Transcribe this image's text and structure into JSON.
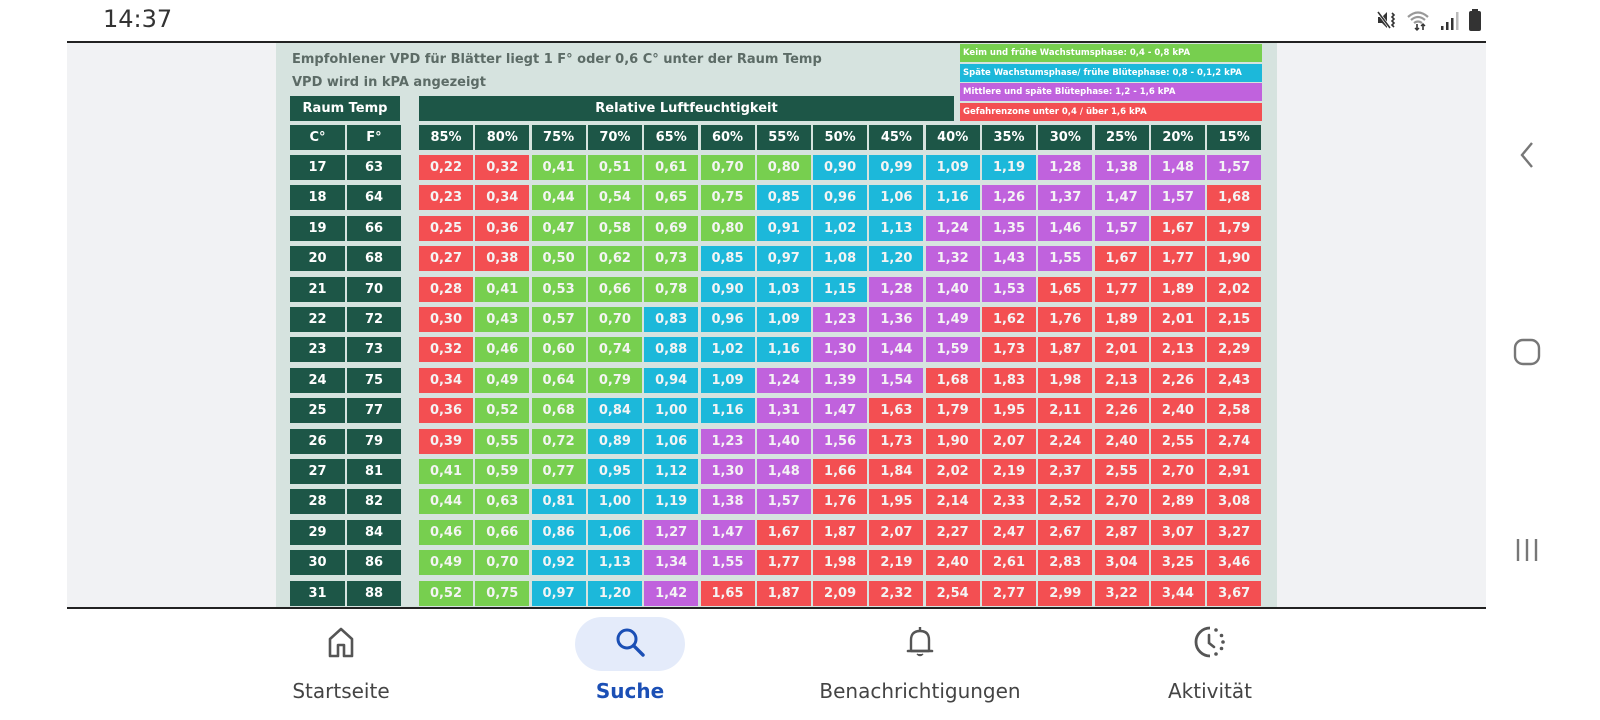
{
  "status_bar": {
    "time": "14:37",
    "icons": [
      "mute-vibrate-icon",
      "wifi-icon",
      "signal-icon",
      "battery-icon"
    ]
  },
  "chart_data": {
    "type": "table",
    "title": "Empfohlener VPD für Blätter liegt 1 F° oder 0,6 C° unter der Raum Temp",
    "subtitle": "VPD wird in kPA angezeigt",
    "row_group_header": "Raum Temp",
    "col_group_header": "Relative Luftfeuchtigkeit",
    "row_headers": [
      "C°",
      "F°"
    ],
    "columns": [
      "85%",
      "80%",
      "75%",
      "70%",
      "65%",
      "60%",
      "55%",
      "50%",
      "45%",
      "40%",
      "35%",
      "30%",
      "25%",
      "20%",
      "15%"
    ],
    "rows": [
      {
        "c": "17",
        "f": "63",
        "values": [
          "0,22",
          "0,32",
          "0,41",
          "0,51",
          "0,61",
          "0,70",
          "0,80",
          "0,90",
          "0,99",
          "1,09",
          "1,19",
          "1,28",
          "1,38",
          "1,48",
          "1,57"
        ]
      },
      {
        "c": "18",
        "f": "64",
        "values": [
          "0,23",
          "0,34",
          "0,44",
          "0,54",
          "0,65",
          "0,75",
          "0,85",
          "0,96",
          "1,06",
          "1,16",
          "1,26",
          "1,37",
          "1,47",
          "1,57",
          "1,68"
        ]
      },
      {
        "c": "19",
        "f": "66",
        "values": [
          "0,25",
          "0,36",
          "0,47",
          "0,58",
          "0,69",
          "0,80",
          "0,91",
          "1,02",
          "1,13",
          "1,24",
          "1,35",
          "1,46",
          "1,57",
          "1,67",
          "1,79"
        ]
      },
      {
        "c": "20",
        "f": "68",
        "values": [
          "0,27",
          "0,38",
          "0,50",
          "0,62",
          "0,73",
          "0,85",
          "0,97",
          "1,08",
          "1,20",
          "1,32",
          "1,43",
          "1,55",
          "1,67",
          "1,77",
          "1,90"
        ]
      },
      {
        "c": "21",
        "f": "70",
        "values": [
          "0,28",
          "0,41",
          "0,53",
          "0,66",
          "0,78",
          "0,90",
          "1,03",
          "1,15",
          "1,28",
          "1,40",
          "1,53",
          "1,65",
          "1,77",
          "1,89",
          "2,02"
        ]
      },
      {
        "c": "22",
        "f": "72",
        "values": [
          "0,30",
          "0,43",
          "0,57",
          "0,70",
          "0,83",
          "0,96",
          "1,09",
          "1,23",
          "1,36",
          "1,49",
          "1,62",
          "1,76",
          "1,89",
          "2,01",
          "2,15"
        ]
      },
      {
        "c": "23",
        "f": "73",
        "values": [
          "0,32",
          "0,46",
          "0,60",
          "0,74",
          "0,88",
          "1,02",
          "1,16",
          "1,30",
          "1,44",
          "1,59",
          "1,73",
          "1,87",
          "2,01",
          "2,13",
          "2,29"
        ]
      },
      {
        "c": "24",
        "f": "75",
        "values": [
          "0,34",
          "0,49",
          "0,64",
          "0,79",
          "0,94",
          "1,09",
          "1,24",
          "1,39",
          "1,54",
          "1,68",
          "1,83",
          "1,98",
          "2,13",
          "2,26",
          "2,43"
        ]
      },
      {
        "c": "25",
        "f": "77",
        "values": [
          "0,36",
          "0,52",
          "0,68",
          "0,84",
          "1,00",
          "1,16",
          "1,31",
          "1,47",
          "1,63",
          "1,79",
          "1,95",
          "2,11",
          "2,26",
          "2,40",
          "2,58"
        ]
      },
      {
        "c": "26",
        "f": "79",
        "values": [
          "0,39",
          "0,55",
          "0,72",
          "0,89",
          "1,06",
          "1,23",
          "1,40",
          "1,56",
          "1,73",
          "1,90",
          "2,07",
          "2,24",
          "2,40",
          "2,55",
          "2,74"
        ]
      },
      {
        "c": "27",
        "f": "81",
        "values": [
          "0,41",
          "0,59",
          "0,77",
          "0,95",
          "1,12",
          "1,30",
          "1,48",
          "1,66",
          "1,84",
          "2,02",
          "2,19",
          "2,37",
          "2,55",
          "2,70",
          "2,91"
        ]
      },
      {
        "c": "28",
        "f": "82",
        "values": [
          "0,44",
          "0,63",
          "0,81",
          "1,00",
          "1,19",
          "1,38",
          "1,57",
          "1,76",
          "1,95",
          "2,14",
          "2,33",
          "2,52",
          "2,70",
          "2,89",
          "3,08"
        ]
      },
      {
        "c": "29",
        "f": "84",
        "values": [
          "0,46",
          "0,66",
          "0,86",
          "1,06",
          "1,27",
          "1,47",
          "1,67",
          "1,87",
          "2,07",
          "2,27",
          "2,47",
          "2,67",
          "2,87",
          "3,07",
          "3,27"
        ]
      },
      {
        "c": "30",
        "f": "86",
        "values": [
          "0,49",
          "0,70",
          "0,92",
          "1,13",
          "1,34",
          "1,55",
          "1,77",
          "1,98",
          "2,19",
          "2,40",
          "2,61",
          "2,83",
          "3,04",
          "3,25",
          "3,46"
        ]
      },
      {
        "c": "31",
        "f": "88",
        "values": [
          "0,52",
          "0,75",
          "0,97",
          "1,20",
          "1,42",
          "1,65",
          "1,87",
          "2,09",
          "2,32",
          "2,54",
          "2,77",
          "2,99",
          "3,22",
          "3,44",
          "3,67"
        ]
      }
    ],
    "legend": [
      {
        "label": "Keim und frühe Wachstumsphase: 0,4 - 0,8 kPA",
        "color": "#77cf4f",
        "min": 0.4,
        "max": 0.8
      },
      {
        "label": "Späte Wachstumsphase/ frühe Blütephase: 0,8 - 0,1,2 kPA",
        "color": "#1cb8da",
        "min": 0.8,
        "max": 1.2
      },
      {
        "label": "Mittlere und späte Blütephase: 1,2 - 1,6 kPA",
        "color": "#c062dd",
        "min": 1.2,
        "max": 1.6
      },
      {
        "label": "Gefahrenzone unter 0,4 / über 1,6 kPA",
        "color": "#f34f52"
      }
    ],
    "cell_colors": {
      "green": "#77cf4f",
      "cyan": "#1cb8da",
      "purple": "#c062dd",
      "red": "#f34f52",
      "header": "#1d5647"
    }
  },
  "bottom_nav": {
    "items": [
      {
        "label": "Startseite",
        "icon": "home-icon",
        "active": false
      },
      {
        "label": "Suche",
        "icon": "search-icon",
        "active": true
      },
      {
        "label": "Benachrichtigungen",
        "icon": "bell-icon",
        "active": false
      },
      {
        "label": "Aktivität",
        "icon": "activity-clock-icon",
        "active": false
      }
    ]
  },
  "system_nav": [
    "back-icon",
    "home-button-icon",
    "recents-icon"
  ]
}
